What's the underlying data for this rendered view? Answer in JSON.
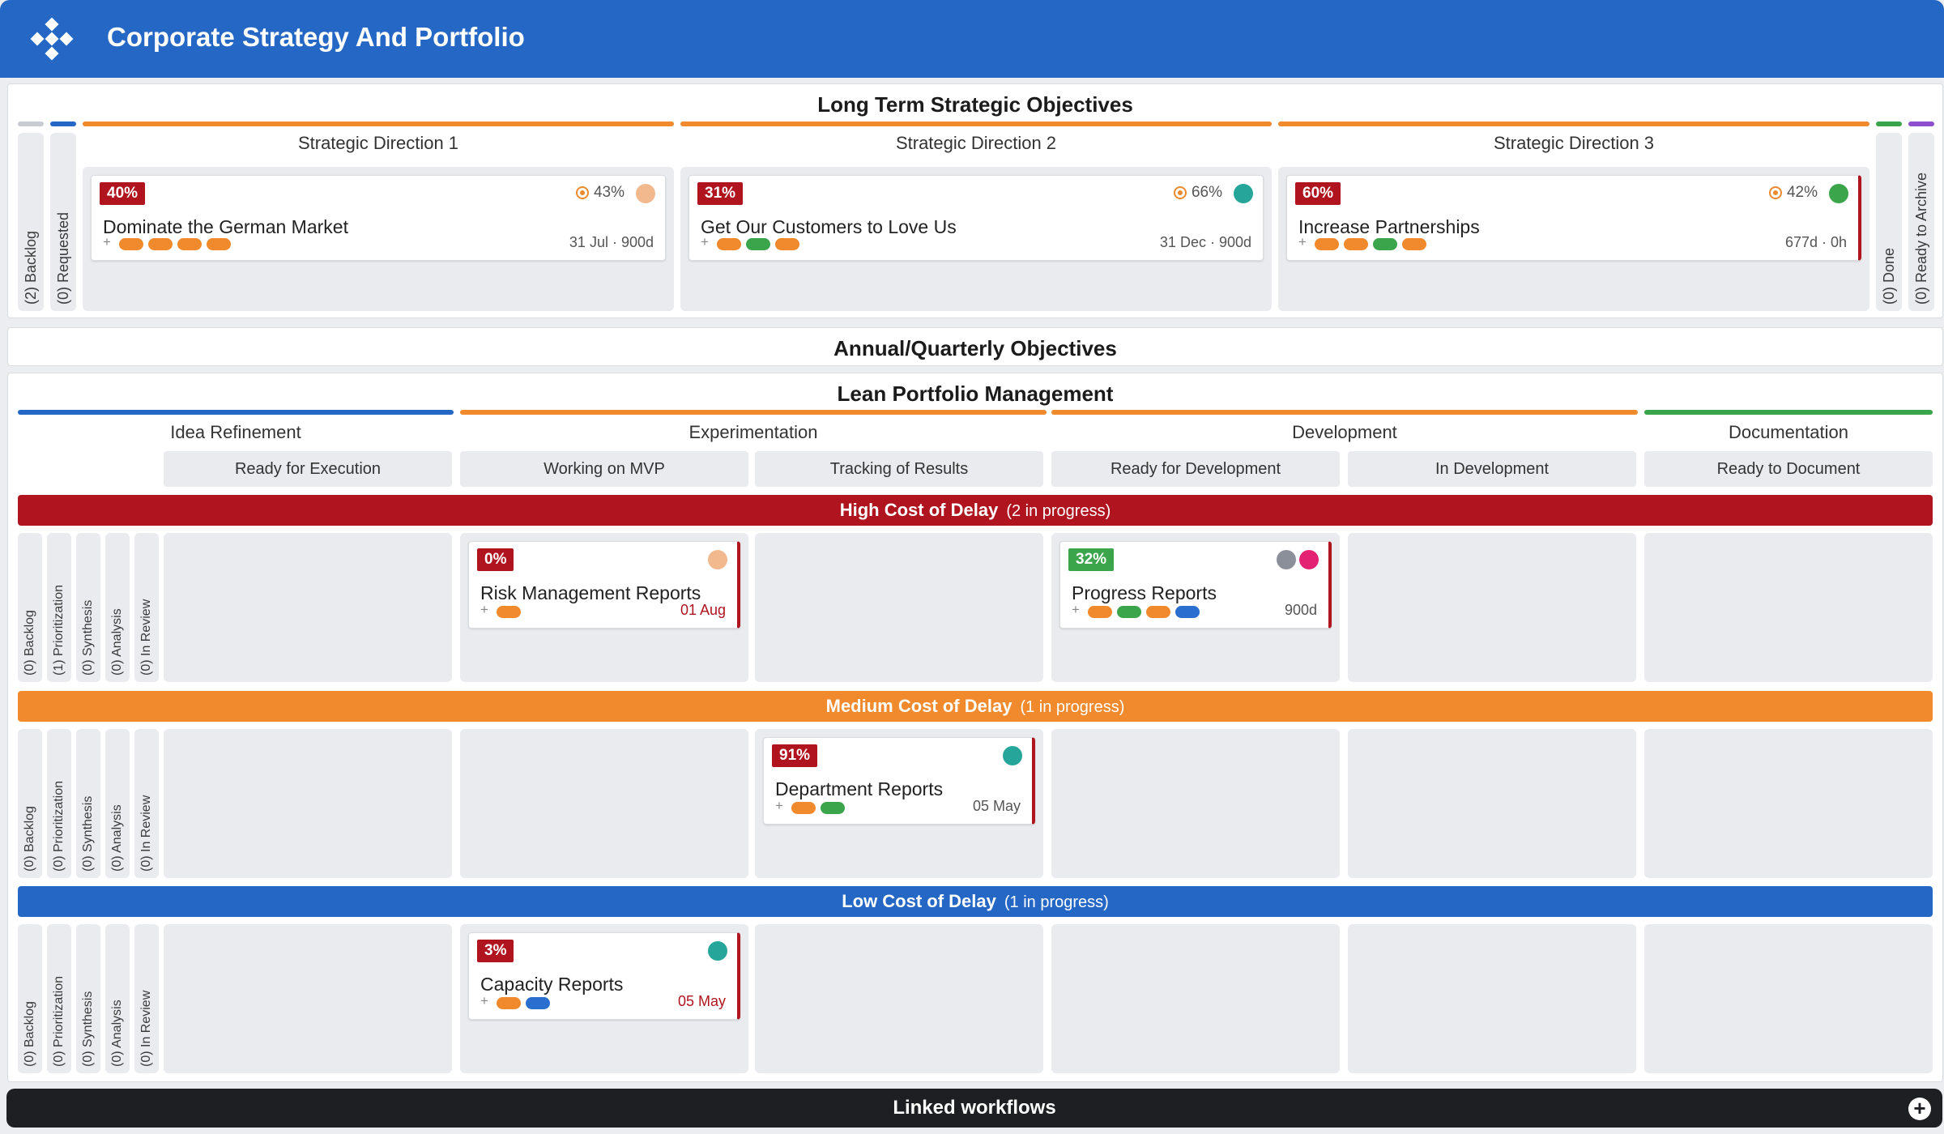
{
  "app": {
    "title": "Corporate Strategy And Portfolio"
  },
  "long_term": {
    "title": "Long Term Strategic Objectives",
    "left_columns": [
      {
        "label": "(2) Backlog"
      },
      {
        "label": "(0) Requested"
      }
    ],
    "right_columns": [
      {
        "label": "(0) Done"
      },
      {
        "label": "(0) Ready to Archive"
      }
    ],
    "directions": [
      {
        "label": "Strategic Direction 1",
        "card": {
          "percent": "40%",
          "title": "Dominate the German Market",
          "target": "43%",
          "meta": "31 Jul · 900d"
        }
      },
      {
        "label": "Strategic Direction 2",
        "card": {
          "percent": "31%",
          "title": "Get Our Customers to Love Us",
          "target": "66%",
          "meta": "31 Dec · 900d"
        }
      },
      {
        "label": "Strategic Direction 3",
        "card": {
          "percent": "60%",
          "title": "Increase Partnerships",
          "target": "42%",
          "meta": "677d · 0h"
        }
      }
    ]
  },
  "annual": {
    "title": "Annual/Quarterly Objectives"
  },
  "lpm": {
    "title": "Lean Portfolio Management",
    "groups": [
      {
        "label": "Idea Refinement"
      },
      {
        "label": "Experimentation"
      },
      {
        "label": "Development"
      },
      {
        "label": "Documentation"
      }
    ],
    "columns": [
      {
        "label": "Ready for Execution"
      },
      {
        "label": "Working on MVP"
      },
      {
        "label": "Tracking of Results"
      },
      {
        "label": "Ready for Development"
      },
      {
        "label": "In Development"
      },
      {
        "label": "Ready to Document"
      }
    ],
    "lanes": [
      {
        "name": "High Cost of Delay",
        "count": "(2 in progress)",
        "color": "#b0141e",
        "stages": [
          "(0) Backlog",
          "(1) Prioritization",
          "(0) Synthesis",
          "(0) Analysis",
          "(0) In Review"
        ]
      },
      {
        "name": "Medium Cost of Delay",
        "count": "(1 in progress)",
        "color": "#f08a2c",
        "stages": [
          "(0) Backlog",
          "(0) Prioritization",
          "(0) Synthesis",
          "(0) Analysis",
          "(0) In Review"
        ]
      },
      {
        "name": "Low Cost of Delay",
        "count": "(1 in progress)",
        "color": "#2567c4",
        "stages": [
          "(0) Backlog",
          "(0) Prioritization",
          "(0) Synthesis",
          "(0) Analysis",
          "(0) In Review"
        ]
      }
    ],
    "cards": {
      "risk": {
        "percent": "0%",
        "title": "Risk Management Reports",
        "meta": "01 Aug"
      },
      "progress": {
        "percent": "32%",
        "title": "Progress Reports",
        "meta": "900d"
      },
      "department": {
        "percent": "91%",
        "title": "Department Reports",
        "meta": "05 May"
      },
      "capacity": {
        "percent": "3%",
        "title": "Capacity Reports",
        "meta": "05 May"
      }
    }
  },
  "footer": {
    "label": "Linked workflows"
  },
  "colors": {
    "orange": "#f08a2c",
    "green": "#3aa54a",
    "blue": "#2a6fcf",
    "red": "#b0141e",
    "teal": "#26a69a"
  }
}
